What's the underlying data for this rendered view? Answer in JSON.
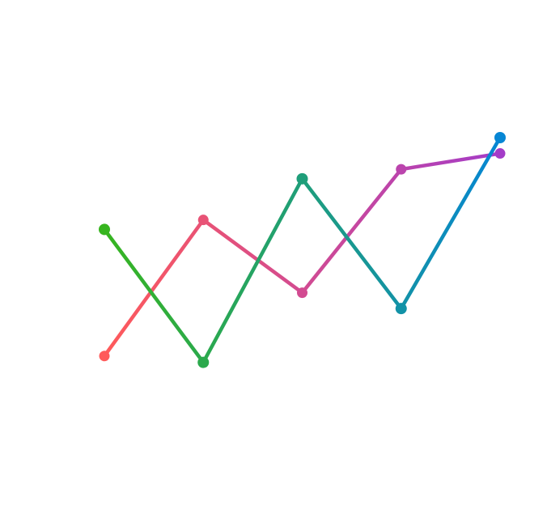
{
  "chart_data": {
    "type": "line",
    "title": "",
    "xlabel": "",
    "ylabel": "",
    "grid": false,
    "legend": "none",
    "x": [
      1,
      2,
      3,
      4,
      5
    ],
    "ylim": [
      0,
      10
    ],
    "series": [
      {
        "values": [
          2.0,
          6.3,
          4.0,
          7.9,
          8.4
        ],
        "start_color": "#ff5a5a",
        "end_color": "#a43cc8"
      },
      {
        "values": [
          6.0,
          1.8,
          7.6,
          3.5,
          8.9
        ],
        "start_color": "#37b51f",
        "end_color": "#0686d4"
      }
    ]
  }
}
